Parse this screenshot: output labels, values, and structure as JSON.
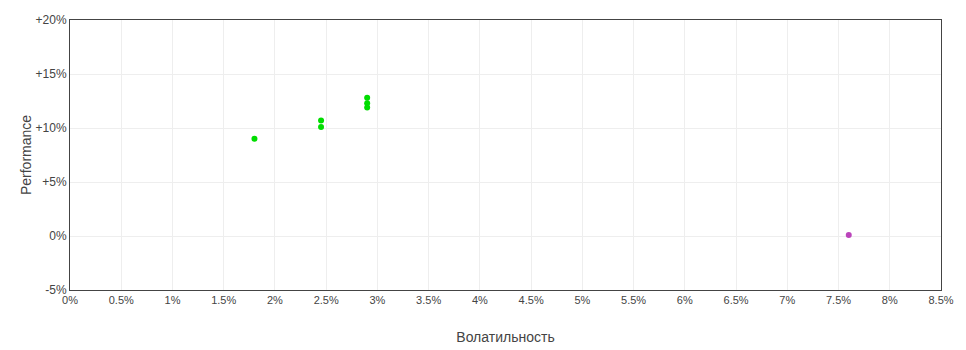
{
  "chart_data": {
    "type": "scatter",
    "xlabel": "Волатильность",
    "ylabel": "Performance",
    "series": [
      {
        "color": "#00dd00",
        "marker": "circle",
        "x": [
          0.018,
          0.0245,
          0.0245,
          0.029,
          0.029,
          0.029
        ],
        "values": [
          0.09,
          0.107,
          0.101,
          0.128,
          0.123,
          0.119
        ]
      },
      {
        "color": "#bb44bb",
        "marker": "circle",
        "x": [
          0.076
        ],
        "values": [
          0.001
        ]
      }
    ],
    "xlim": [
      0.0,
      0.085
    ],
    "ylim": [
      -0.05,
      0.2
    ],
    "xticks": [
      {
        "value": 0.0,
        "label": "0%"
      },
      {
        "value": 0.005,
        "label": "0.5%"
      },
      {
        "value": 0.01,
        "label": "1%"
      },
      {
        "value": 0.015,
        "label": "1.5%"
      },
      {
        "value": 0.02,
        "label": "2%"
      },
      {
        "value": 0.025,
        "label": "2.5%"
      },
      {
        "value": 0.03,
        "label": "3%"
      },
      {
        "value": 0.035,
        "label": "3.5%"
      },
      {
        "value": 0.04,
        "label": "4%"
      },
      {
        "value": 0.045,
        "label": "4.5%"
      },
      {
        "value": 0.05,
        "label": "5%"
      },
      {
        "value": 0.055,
        "label": "5.5%"
      },
      {
        "value": 0.06,
        "label": "6%"
      },
      {
        "value": 0.065,
        "label": "6.5%"
      },
      {
        "value": 0.07,
        "label": "7%"
      },
      {
        "value": 0.075,
        "label": "7.5%"
      },
      {
        "value": 0.08,
        "label": "8%"
      },
      {
        "value": 0.085,
        "label": "8.5%"
      }
    ],
    "yticks": [
      {
        "value": -0.05,
        "label": "-5%"
      },
      {
        "value": 0.0,
        "label": "0%"
      },
      {
        "value": 0.05,
        "label": "+5%"
      },
      {
        "value": 0.1,
        "label": "+10%"
      },
      {
        "value": 0.15,
        "label": "+15%"
      },
      {
        "value": 0.2,
        "label": "+20%"
      }
    ],
    "grid": true
  }
}
